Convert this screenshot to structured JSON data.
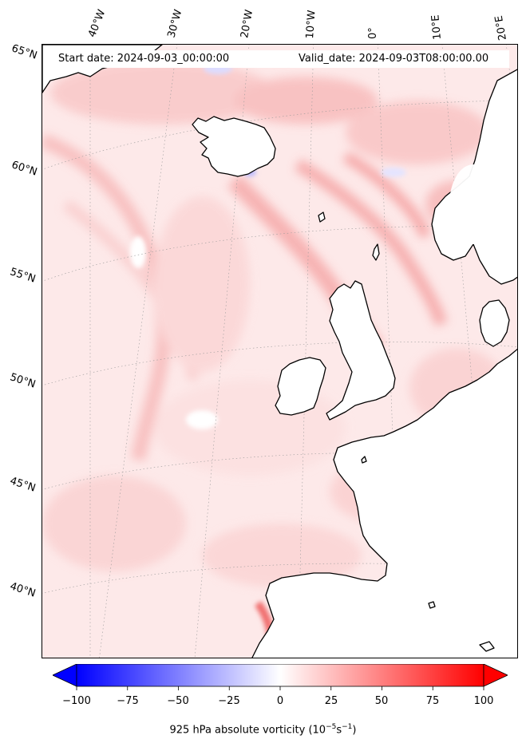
{
  "header": {
    "start_date": "Start date: 2024-09-03_00:00:00",
    "valid_date": "Valid_date: 2024-09-03T08:00:00.00"
  },
  "longitude_labels": [
    "40°W",
    "30°W",
    "20°W",
    "10°W",
    "0°",
    "10°E",
    "20°E"
  ],
  "latitude_labels": [
    "65°N",
    "60°N",
    "55°N",
    "50°N",
    "45°N",
    "40°N"
  ],
  "colorbar": {
    "label_prefix": "925 hPa absolute vorticity (10",
    "label_exp1": "−5",
    "label_mid": "s",
    "label_exp2": "−1",
    "label_suffix": ")",
    "ticks": [
      "−100",
      "−75",
      "−50",
      "−25",
      "0",
      "25",
      "50",
      "75",
      "100"
    ],
    "range": [
      -100,
      100
    ],
    "colormap": "bwr",
    "color_low": "#0000ff",
    "color_mid": "#ffffff",
    "color_high": "#ff0000"
  },
  "map": {
    "land_color": "#ffffff",
    "ocean_field_base": "#fde6e6",
    "coastline_color": "#000000",
    "gridline_style": "dotted gray"
  }
}
